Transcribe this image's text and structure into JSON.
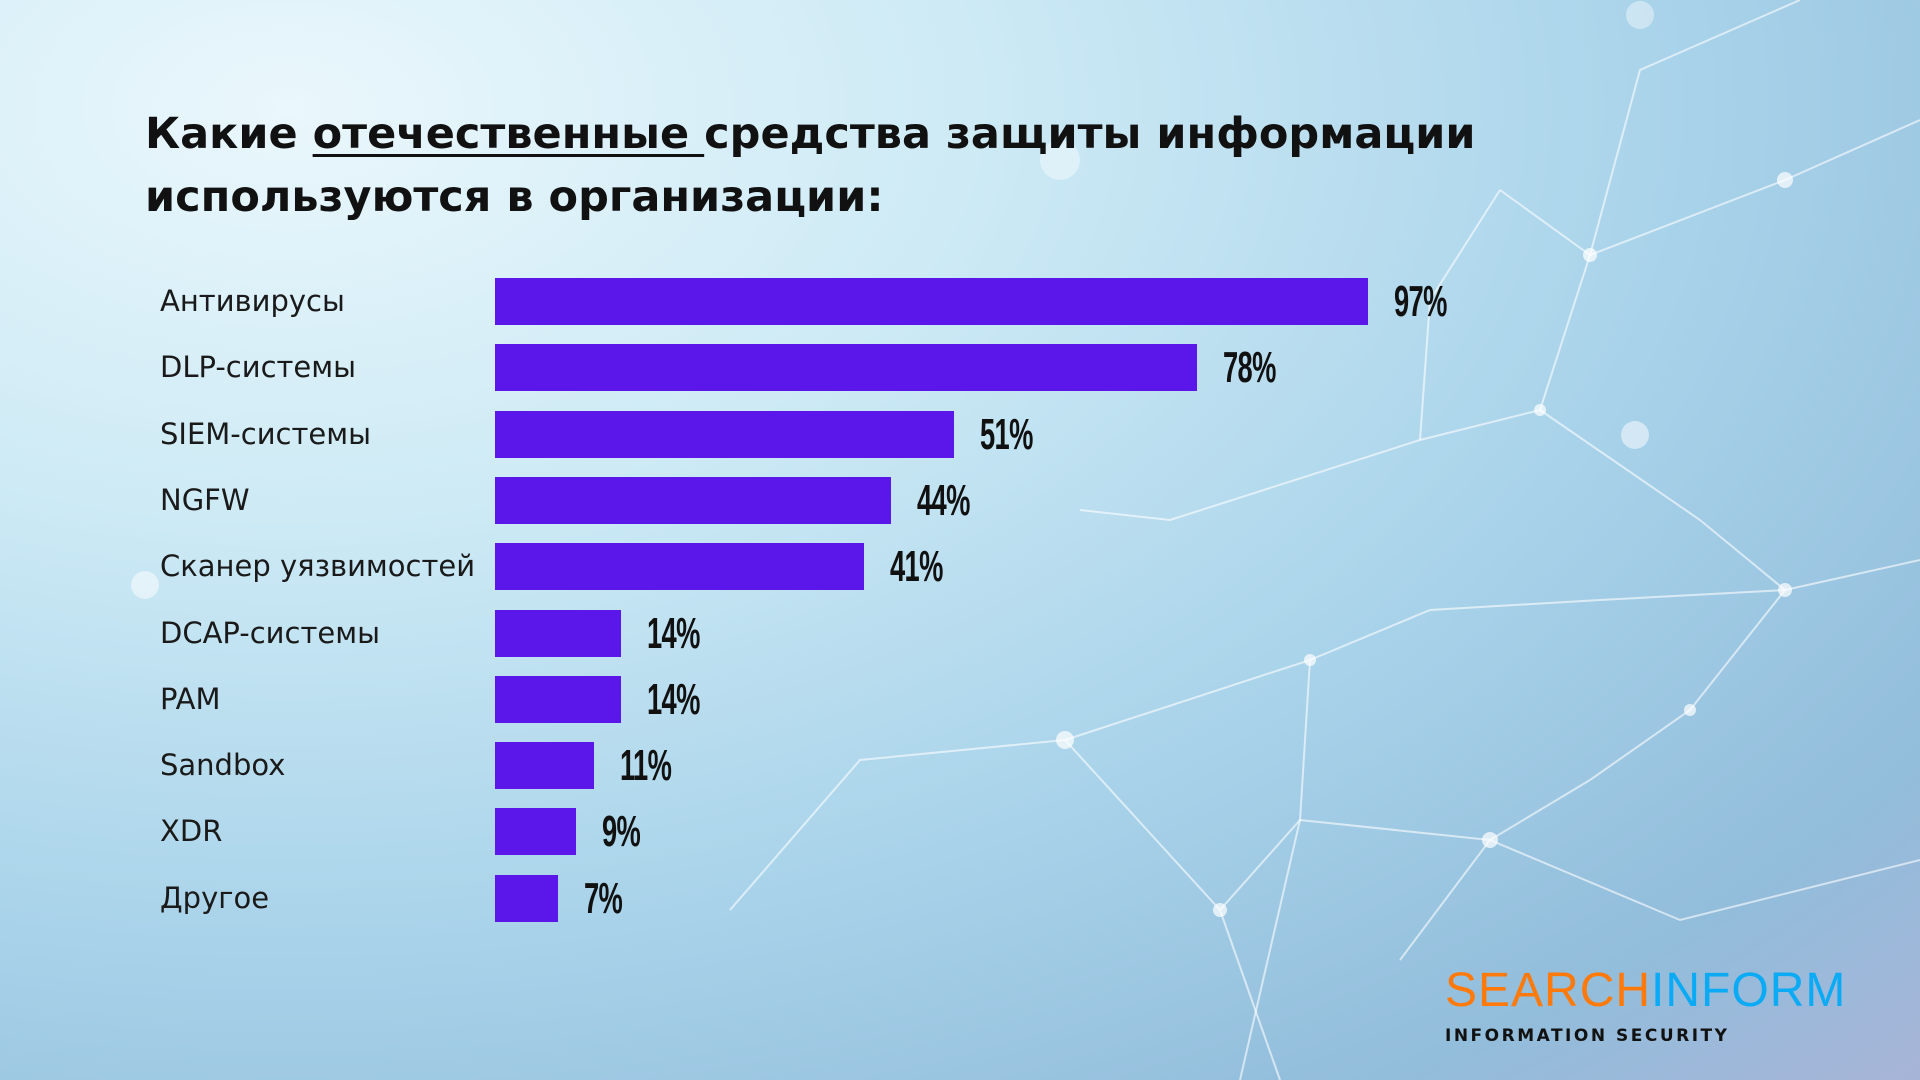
{
  "chart_data": {
    "type": "bar",
    "orientation": "horizontal",
    "title_parts": [
      "Какие ",
      "отечественные ",
      "средства защиты информации",
      "используются в организации:"
    ],
    "categories": [
      "Антивирусы",
      "DLP-системы",
      "SIEM-системы",
      "NGFW",
      "Сканер уязвимостей",
      "DCAP-системы",
      "PAM",
      "Sandbox",
      "XDR",
      "Другое"
    ],
    "values": [
      97,
      78,
      51,
      44,
      41,
      14,
      14,
      11,
      9,
      7
    ],
    "value_labels": [
      "97%",
      "78%",
      "51%",
      "44%",
      "41%",
      "14%",
      "14%",
      "11%",
      "9%",
      "7%"
    ],
    "xlim": [
      0,
      100
    ],
    "bar_color": "#5b17ea",
    "grid": false
  },
  "logo": {
    "part1": "SEARCH",
    "part2": "INFORM",
    "tagline": "INFORMATION SECURITY",
    "color1": "#ff7a0a",
    "color2": "#0aaaf5"
  }
}
